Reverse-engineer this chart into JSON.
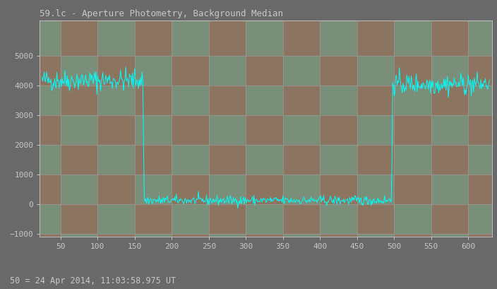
{
  "title": "59.lc - Aperture Photometry, Background Median",
  "footer": "50 = 24 Apr 2014, 11:03:58.975 UT",
  "bg_color": "#696969",
  "plot_bg_color1": "#8b7560",
  "plot_bg_color2": "#7a8f7a",
  "grid_color_h": "#a09898",
  "grid_color_v": "#a09898",
  "line_color": "#00ffff",
  "title_color": "#c8c8c8",
  "text_color": "#c8c8c8",
  "tick_color": "#c8c8c8",
  "xlim": [
    22,
    632
  ],
  "ylim": [
    -1100,
    6200
  ],
  "xticks": [
    50,
    100,
    150,
    200,
    250,
    300,
    350,
    400,
    450,
    500,
    550,
    600
  ],
  "yticks": [
    -1000,
    0,
    1000,
    2000,
    3000,
    4000,
    5000
  ],
  "x_grid": [
    50,
    100,
    150,
    200,
    250,
    300,
    350,
    400,
    450,
    500,
    550,
    600
  ],
  "y_grid": [
    -1000,
    0,
    1000,
    2000,
    3000,
    4000,
    5000
  ],
  "drop_start": 162,
  "drop_end": 497,
  "pre_level": 4180,
  "post_level": 4050,
  "occult_level": 130,
  "pre_noise": 180,
  "post_noise": 180,
  "occult_noise": 80,
  "seed": 42
}
